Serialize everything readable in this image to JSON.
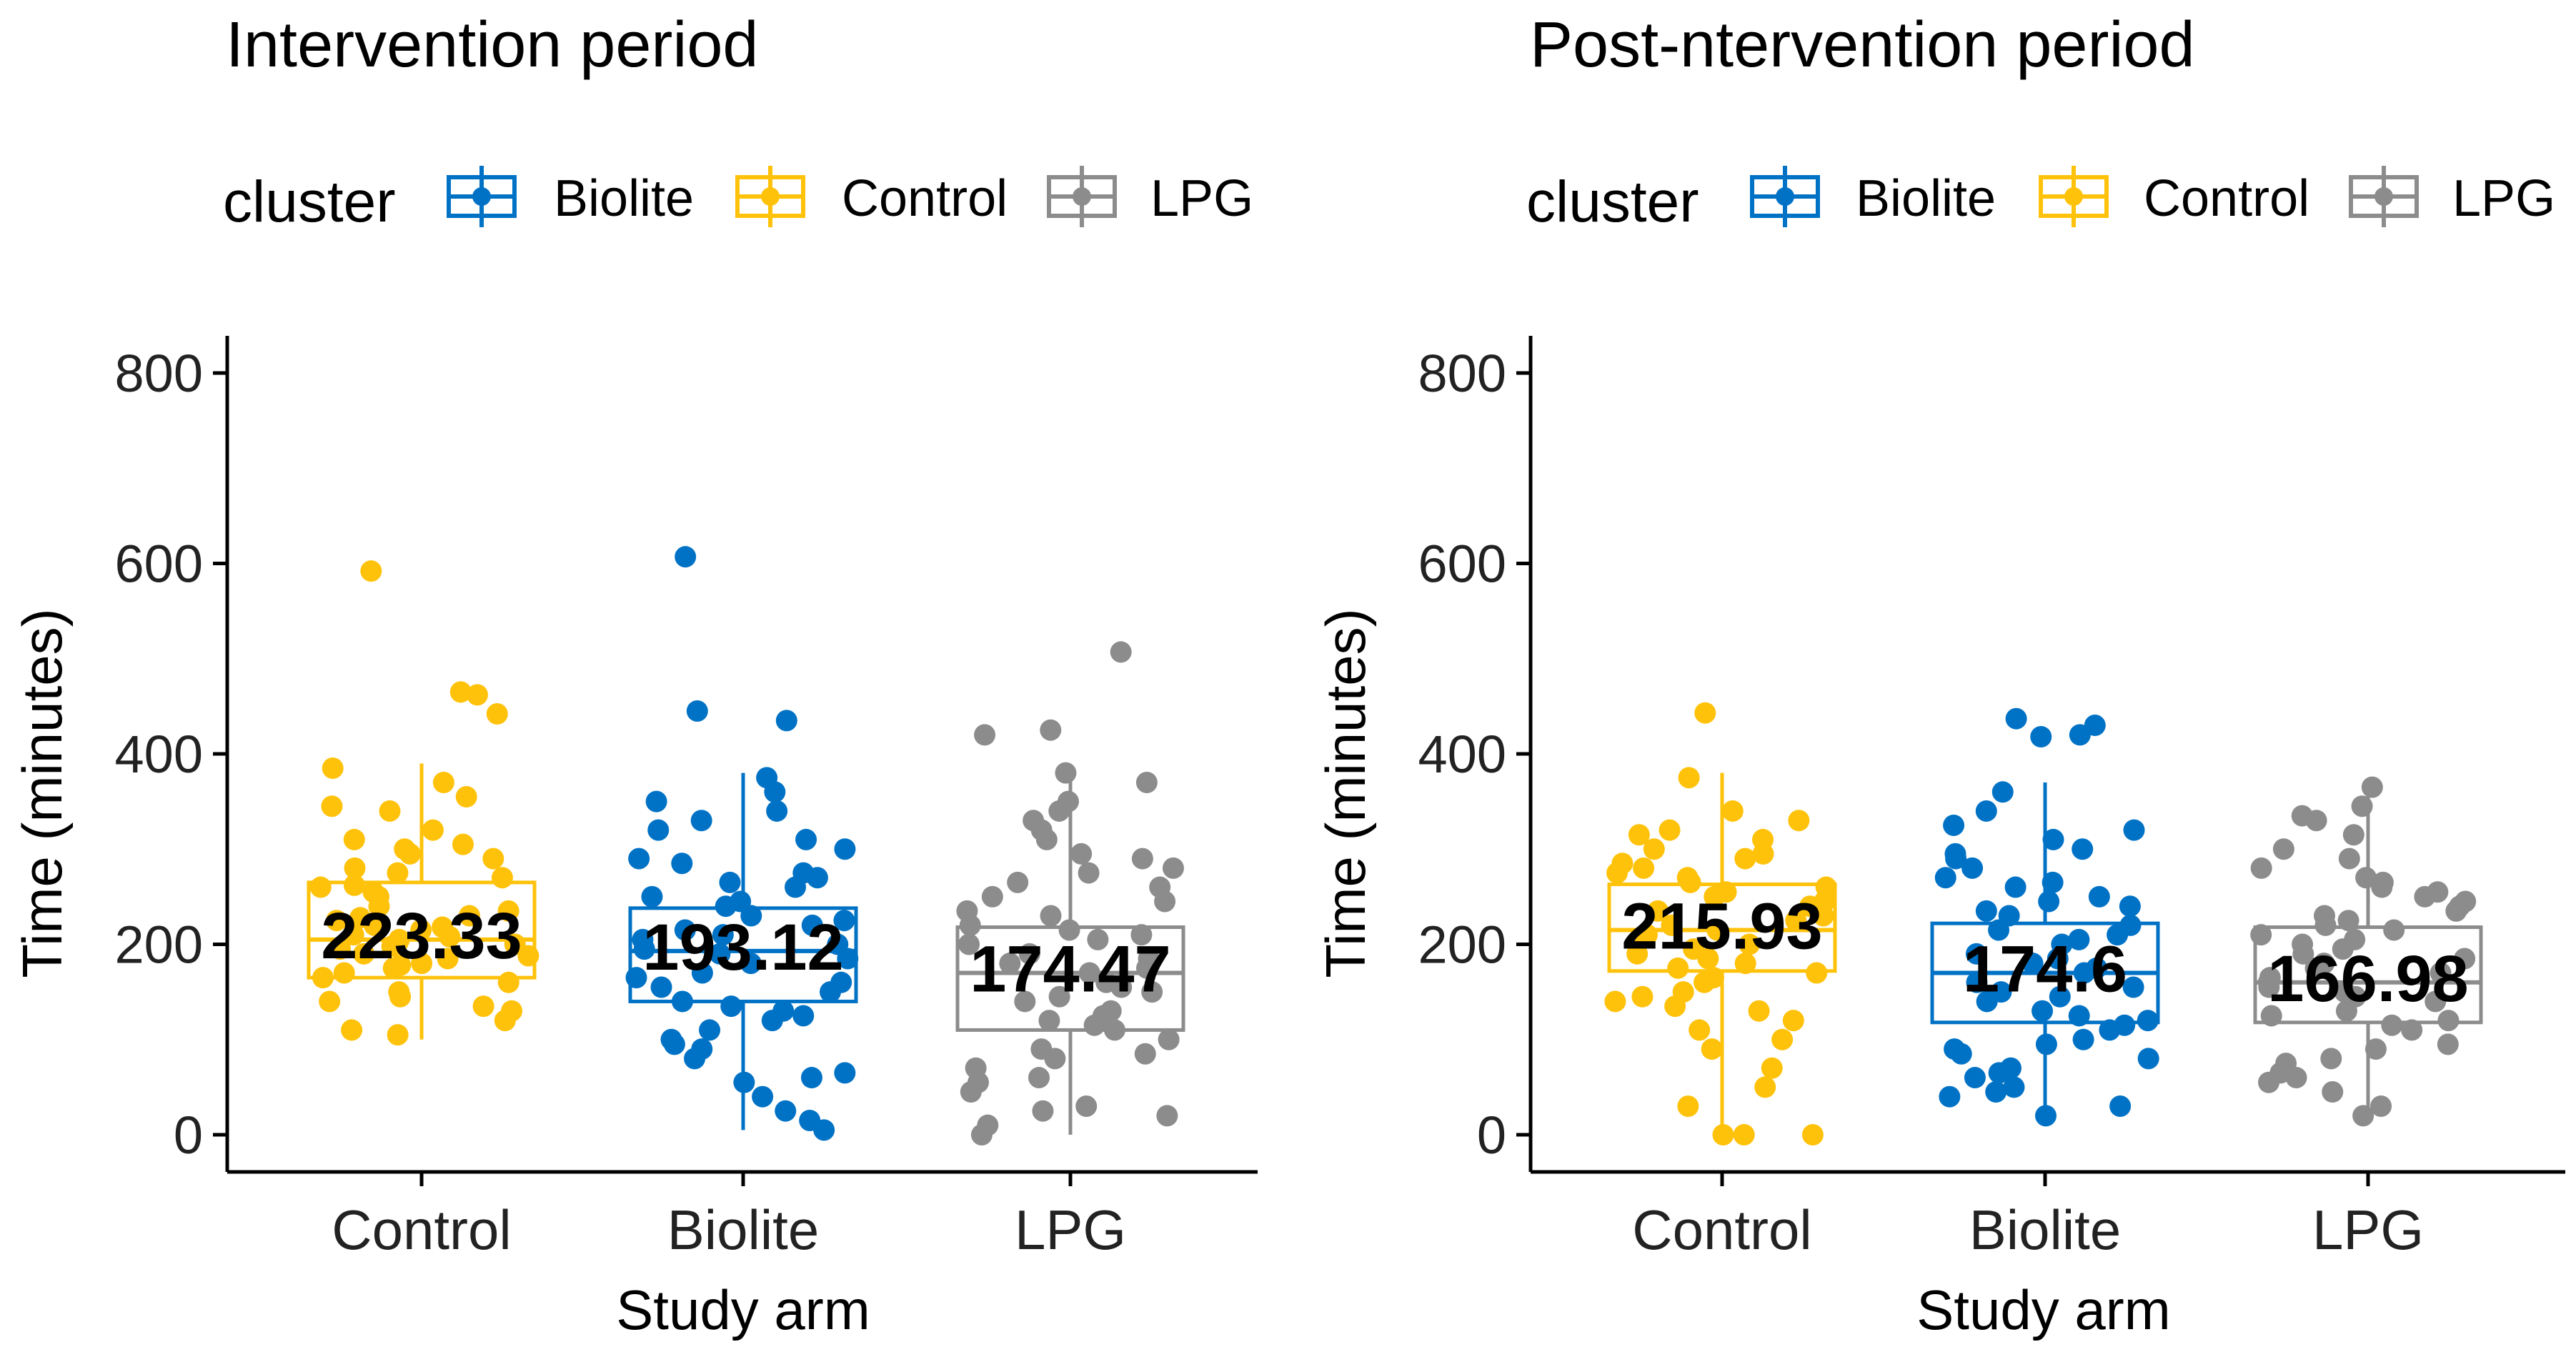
{
  "legend": {
    "title": "cluster",
    "items": [
      "Biolite",
      "Control",
      "LPG"
    ]
  },
  "colors": {
    "Biolite": "#0072C6",
    "Control": "#FFC20A",
    "LPG": "#8C8C8C",
    "axis": "#000000",
    "label": "#000000"
  },
  "chart_data": [
    {
      "type": "box",
      "title": "Intervention period",
      "xlabel": "Study arm",
      "ylabel": "Time (minutes)",
      "ylim": [
        -40,
        840
      ],
      "yticks": [
        0,
        200,
        400,
        600,
        800
      ],
      "categories": [
        "Control",
        "Biolite",
        "LPG"
      ],
      "series": [
        {
          "name": "Control",
          "cluster": "Control",
          "q1": 165,
          "median": 205,
          "q3": 265,
          "whisker_low": 100,
          "whisker_high": 390,
          "mean_label": "223.33",
          "outliers": [
            592,
            465,
            462,
            442
          ],
          "points": [
            120,
            130,
            140,
            150,
            160,
            170,
            175,
            180,
            185,
            190,
            195,
            200,
            205,
            210,
            215,
            220,
            225,
            230,
            240,
            250,
            260,
            270,
            280,
            290,
            300,
            310,
            320,
            340,
            355,
            370,
            385,
            110,
            145,
            165,
            188,
            198,
            208,
            218,
            235,
            255,
            275,
            295,
            105,
            135,
            178,
            202,
            228,
            262,
            305,
            345
          ]
        },
        {
          "name": "Biolite",
          "cluster": "Biolite",
          "q1": 140,
          "median": 193,
          "q3": 238,
          "whisker_low": 5,
          "whisker_high": 380,
          "mean_label": "193.12",
          "outliers": [
            607,
            445,
            435
          ],
          "points": [
            5,
            15,
            25,
            40,
            55,
            65,
            80,
            90,
            100,
            110,
            120,
            130,
            140,
            150,
            160,
            170,
            180,
            190,
            195,
            200,
            210,
            220,
            230,
            240,
            250,
            260,
            270,
            285,
            300,
            320,
            340,
            360,
            375,
            60,
            95,
            125,
            155,
            185,
            205,
            225,
            245,
            275,
            310,
            350,
            135,
            165,
            215,
            265,
            290,
            330
          ]
        },
        {
          "name": "LPG",
          "cluster": "LPG",
          "q1": 110,
          "median": 170,
          "q3": 218,
          "whisker_low": 0,
          "whisker_high": 380,
          "mean_label": "174.47",
          "outliers": [
            507,
            425,
            420
          ],
          "points": [
            0,
            10,
            20,
            30,
            45,
            60,
            70,
            80,
            90,
            100,
            110,
            120,
            130,
            140,
            150,
            160,
            170,
            180,
            190,
            200,
            210,
            220,
            235,
            250,
            265,
            280,
            295,
            310,
            330,
            350,
            370,
            380,
            25,
            55,
            85,
            115,
            145,
            175,
            205,
            230,
            260,
            290,
            320,
            340,
            125,
            155,
            185,
            215,
            245,
            275
          ]
        }
      ]
    },
    {
      "type": "box",
      "title": "Post-ntervention period",
      "xlabel": "Study arm",
      "ylabel": "Time (minutes)",
      "ylim": [
        -40,
        840
      ],
      "yticks": [
        0,
        200,
        400,
        600,
        800
      ],
      "categories": [
        "Control",
        "Biolite",
        "LPG"
      ],
      "series": [
        {
          "name": "Control",
          "cluster": "Control",
          "q1": 172,
          "median": 215,
          "q3": 263,
          "whisker_low": 0,
          "whisker_high": 380,
          "mean_label": "215.93",
          "outliers": [
            443
          ],
          "points": [
            0,
            0,
            0,
            30,
            50,
            70,
            90,
            110,
            120,
            130,
            140,
            150,
            160,
            170,
            180,
            190,
            200,
            205,
            210,
            215,
            220,
            230,
            240,
            250,
            260,
            270,
            280,
            290,
            300,
            310,
            320,
            330,
            340,
            375,
            100,
            145,
            175,
            195,
            225,
            255,
            285,
            315,
            185,
            235,
            265,
            165,
            135,
            245,
            275,
            295
          ]
        },
        {
          "name": "Biolite",
          "cluster": "Biolite",
          "q1": 118,
          "median": 170,
          "q3": 222,
          "whisker_low": 20,
          "whisker_high": 370,
          "mean_label": "174.6",
          "outliers": [
            437,
            430,
            420,
            418
          ],
          "points": [
            20,
            30,
            40,
            50,
            60,
            70,
            80,
            90,
            100,
            110,
            120,
            130,
            140,
            150,
            160,
            170,
            180,
            190,
            200,
            210,
            220,
            230,
            240,
            250,
            260,
            270,
            280,
            290,
            300,
            310,
            320,
            340,
            360,
            45,
            85,
            115,
            145,
            175,
            205,
            235,
            265,
            295,
            125,
            155,
            185,
            215,
            65,
            95,
            245,
            325
          ]
        },
        {
          "name": "LPG",
          "cluster": "LPG",
          "q1": 118,
          "median": 160,
          "q3": 218,
          "whisker_low": 20,
          "whisker_high": 365,
          "mean_label": "166.98",
          "outliers": [],
          "points": [
            20,
            30,
            45,
            55,
            65,
            80,
            95,
            110,
            120,
            130,
            140,
            150,
            160,
            170,
            180,
            190,
            200,
            210,
            220,
            230,
            240,
            250,
            260,
            270,
            280,
            290,
            300,
            315,
            330,
            335,
            345,
            365,
            60,
            90,
            115,
            145,
            165,
            185,
            205,
            225,
            245,
            265,
            125,
            155,
            175,
            195,
            215,
            235,
            255,
            75
          ]
        }
      ]
    }
  ]
}
